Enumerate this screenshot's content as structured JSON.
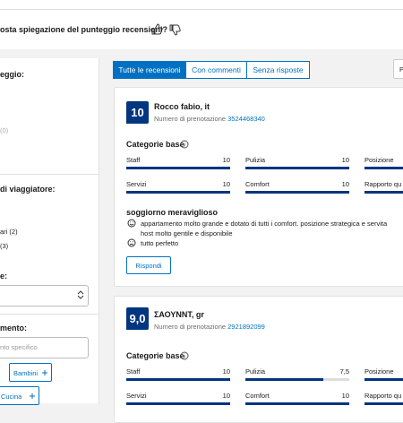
{
  "top_question": "osta spiegazione del punteggio recensioni?",
  "sidebar": {
    "score_heading": "eggio:",
    "score_option": "(0)",
    "traveler_heading": "di viaggiatore:",
    "traveler_options": [
      "ari (2)",
      "(3)"
    ],
    "select_heading": "e:",
    "stay_heading": "mento:",
    "stay_placeholder": "nto specifico",
    "tags": [
      "Bambini",
      "Cucina"
    ]
  },
  "tabs": [
    "Tutte le recensioni",
    "Con commenti",
    "Senza risposte"
  ],
  "sort_box": "P",
  "reviews": [
    {
      "score": "10",
      "name": "Rocco fabio, it",
      "booking_label": "Numero di prenotazione",
      "booking_number": "3524468340",
      "categories_title": "Categorie base",
      "categories": [
        {
          "name": "Staff",
          "score": "10"
        },
        {
          "name": "Pulizia",
          "score": "10"
        },
        {
          "name": "Posizione",
          "score": null
        },
        {
          "name": "Servizi",
          "score": "10"
        },
        {
          "name": "Comfort",
          "score": "10"
        },
        {
          "name": "Rapporto qu",
          "score": null
        }
      ],
      "title": "soggiorno meraviglioso",
      "positive_lines": [
        "appartamento molto grande e dotato di tutti i comfort. posizione strategica e servita",
        "host molto gentile e disponibile"
      ],
      "negative": "tutto perfetto",
      "reply_button": "Rispondi"
    },
    {
      "score": "9,0",
      "name": "ΣΑΟΥΝΝΤ, gr",
      "booking_label": "Numero di prenotazione",
      "booking_number": "2921892099",
      "categories_title": "Categorie base",
      "categories": [
        {
          "name": "Staff",
          "score": "10"
        },
        {
          "name": "Pulizia",
          "score": "7,5"
        },
        {
          "name": "Posizione",
          "score": null
        },
        {
          "name": "Servizi",
          "score": "10"
        },
        {
          "name": "Comfort",
          "score": "10"
        },
        {
          "name": "Rapporto qu",
          "score": null
        }
      ]
    }
  ]
}
